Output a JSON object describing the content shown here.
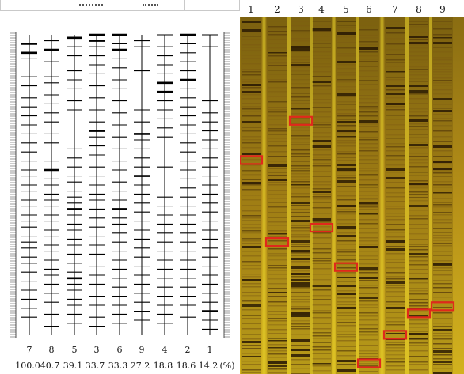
{
  "dendrogram": {
    "lanes": [
      {
        "lane_label": "7",
        "percent": "100.0",
        "bands": [
          0.03,
          0.06,
          0.08,
          0.14,
          0.17,
          0.21,
          0.24,
          0.27,
          0.3,
          0.33,
          0.36,
          0.39,
          0.42,
          0.45,
          0.47,
          0.5,
          0.52,
          0.55,
          0.57,
          0.6,
          0.62,
          0.64,
          0.67,
          0.69,
          0.71,
          0.74,
          0.76,
          0.79,
          0.82,
          0.85,
          0.88,
          0.91,
          0.94
        ],
        "thick": [
          0.03,
          0.06
        ]
      },
      {
        "lane_label": "8",
        "percent": "40.7",
        "bands": [
          0.02,
          0.05,
          0.09,
          0.14,
          0.16,
          0.2,
          0.23,
          0.26,
          0.29,
          0.33,
          0.36,
          0.42,
          0.45,
          0.48,
          0.5,
          0.53,
          0.55,
          0.57,
          0.6,
          0.62,
          0.65,
          0.67,
          0.7,
          0.72,
          0.75,
          0.78,
          0.8,
          0.83,
          0.86,
          0.89,
          0.93,
          0.97
        ],
        "thick": [
          0.05,
          0.45
        ]
      },
      {
        "lane_label": "5",
        "percent": "39.1",
        "bands": [
          0.01,
          0.04,
          0.07,
          0.12,
          0.15,
          0.18,
          0.22,
          0.25,
          0.38,
          0.41,
          0.44,
          0.47,
          0.49,
          0.52,
          0.54,
          0.56,
          0.58,
          0.6,
          0.63,
          0.65,
          0.68,
          0.7,
          0.73,
          0.76,
          0.79,
          0.81,
          0.83,
          0.85,
          0.88,
          0.9,
          0.93,
          0.96
        ],
        "thick": [
          0.01,
          0.58,
          0.81
        ]
      },
      {
        "lane_label": "3",
        "percent": "33.7",
        "bands": [
          0.0,
          0.02,
          0.04,
          0.07,
          0.1,
          0.13,
          0.17,
          0.21,
          0.25,
          0.29,
          0.32,
          0.34,
          0.37,
          0.4,
          0.44,
          0.47,
          0.5,
          0.53,
          0.55,
          0.58,
          0.61,
          0.64,
          0.67,
          0.7,
          0.73,
          0.77,
          0.8,
          0.83,
          0.87,
          0.9,
          0.94,
          0.97
        ],
        "thick": [
          0.0,
          0.02,
          0.32
        ]
      },
      {
        "lane_label": "6",
        "percent": "33.3",
        "bands": [
          0.0,
          0.03,
          0.05,
          0.08,
          0.11,
          0.15,
          0.18,
          0.22,
          0.26,
          0.3,
          0.34,
          0.38,
          0.42,
          0.45,
          0.49,
          0.52,
          0.55,
          0.58,
          0.61,
          0.63,
          0.66,
          0.69,
          0.72,
          0.75,
          0.78,
          0.81,
          0.84,
          0.87,
          0.9,
          0.93,
          0.96
        ],
        "thick": [
          0.0,
          0.05,
          0.58
        ]
      },
      {
        "lane_label": "9",
        "percent": "27.2",
        "bands": [
          0.02,
          0.04,
          0.12,
          0.25,
          0.29,
          0.33,
          0.35,
          0.38,
          0.41,
          0.44,
          0.47,
          0.5,
          0.53,
          0.56,
          0.59,
          0.62,
          0.65,
          0.68,
          0.71,
          0.74,
          0.77,
          0.8,
          0.83,
          0.86,
          0.89,
          0.92,
          0.95
        ],
        "thick": [
          0.33,
          0.47
        ]
      },
      {
        "lane_label": "4",
        "percent": "18.8",
        "bands": [
          0.0,
          0.04,
          0.07,
          0.1,
          0.13,
          0.16,
          0.19,
          0.22,
          0.25,
          0.28,
          0.31,
          0.34,
          0.44,
          0.54,
          0.57,
          0.6,
          0.63,
          0.66,
          0.69,
          0.72,
          0.75,
          0.78,
          0.81,
          0.84,
          0.87,
          0.9,
          0.93,
          0.96
        ],
        "thick": [
          0.16,
          0.19
        ]
      },
      {
        "lane_label": "2",
        "percent": "18.6",
        "bands": [
          0.0,
          0.03,
          0.06,
          0.09,
          0.12,
          0.15,
          0.18,
          0.21,
          0.24,
          0.27,
          0.3,
          0.33,
          0.36,
          0.39,
          0.42,
          0.45,
          0.48,
          0.51,
          0.54,
          0.57,
          0.6,
          0.63,
          0.66,
          0.69,
          0.72,
          0.75,
          0.78,
          0.81,
          0.84,
          0.87,
          0.9,
          0.94
        ],
        "thick": [
          0.0,
          0.15
        ]
      },
      {
        "lane_label": "1",
        "percent": "14.2",
        "bands": [
          0.0,
          0.04,
          0.22,
          0.26,
          0.29,
          0.32,
          0.35,
          0.38,
          0.41,
          0.44,
          0.47,
          0.5,
          0.53,
          0.56,
          0.59,
          0.62,
          0.65,
          0.68,
          0.71,
          0.74,
          0.77,
          0.8,
          0.83,
          0.86,
          0.89,
          0.92,
          0.95,
          0.98
        ],
        "thick": [
          0.92
        ]
      }
    ],
    "percent_unit": "(%)"
  },
  "gel": {
    "lane_labels": [
      "1",
      "2",
      "3",
      "4",
      "5",
      "6",
      "7",
      "8",
      "9"
    ],
    "highlight_color": "#e0281c",
    "background_color": "#c9a31a",
    "highlights": [
      {
        "lane": 1,
        "position": 0.4
      },
      {
        "lane": 2,
        "position": 0.63
      },
      {
        "lane": 3,
        "position": 0.29
      },
      {
        "lane": 4,
        "position": 0.59
      },
      {
        "lane": 5,
        "position": 0.7
      },
      {
        "lane": 6,
        "position": 0.97
      },
      {
        "lane": 7,
        "position": 0.89
      },
      {
        "lane": 8,
        "position": 0.83
      },
      {
        "lane": 9,
        "position": 0.81
      }
    ]
  }
}
